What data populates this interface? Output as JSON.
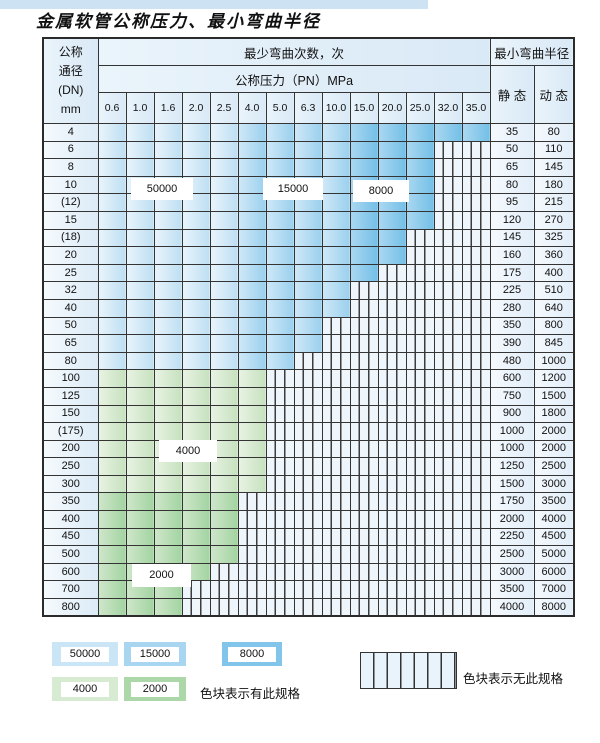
{
  "title": "金属软管公称压力、最小弯曲半径",
  "table": {
    "corner": {
      "line1": "公称",
      "line2": "通径",
      "line3": "(DN)",
      "line4": "mm"
    },
    "top_header": "最少弯曲次数，次",
    "pressure_header": "公称压力（PN）MPa",
    "radius_header": "最小弯曲半径",
    "static_label": "静 态",
    "dynamic_label": "动 态",
    "pressure_columns": [
      "0.6",
      "1.0",
      "1.6",
      "2.0",
      "2.5",
      "4.0",
      "5.0",
      "6.3",
      "10.0",
      "15.0",
      "20.0",
      "25.0",
      "32.0",
      "35.0"
    ],
    "blue_zones": [
      {
        "max_col": 4,
        "cycles": "50000"
      },
      {
        "max_col": 8,
        "cycles": "15000"
      },
      {
        "max_col": 13,
        "cycles": "8000"
      }
    ],
    "rows": [
      {
        "dn": "4",
        "colored_until": 13,
        "palette": "blue",
        "static_radius": "35",
        "dynamic_radius": "80"
      },
      {
        "dn": "6",
        "colored_until": 11,
        "palette": "blue",
        "static_radius": "50",
        "dynamic_radius": "110"
      },
      {
        "dn": "8",
        "colored_until": 11,
        "palette": "blue",
        "static_radius": "65",
        "dynamic_radius": "145"
      },
      {
        "dn": "10",
        "colored_until": 11,
        "palette": "blue",
        "static_radius": "80",
        "dynamic_radius": "180"
      },
      {
        "dn": "(12)",
        "colored_until": 11,
        "palette": "blue",
        "static_radius": "95",
        "dynamic_radius": "215"
      },
      {
        "dn": "15",
        "colored_until": 11,
        "palette": "blue",
        "static_radius": "120",
        "dynamic_radius": "270"
      },
      {
        "dn": "(18)",
        "colored_until": 10,
        "palette": "blue",
        "static_radius": "145",
        "dynamic_radius": "325"
      },
      {
        "dn": "20",
        "colored_until": 10,
        "palette": "blue",
        "static_radius": "160",
        "dynamic_radius": "360"
      },
      {
        "dn": "25",
        "colored_until": 9,
        "palette": "blue",
        "static_radius": "175",
        "dynamic_radius": "400"
      },
      {
        "dn": "32",
        "colored_until": 8,
        "palette": "blue",
        "static_radius": "225",
        "dynamic_radius": "510"
      },
      {
        "dn": "40",
        "colored_until": 8,
        "palette": "blue",
        "static_radius": "280",
        "dynamic_radius": "640"
      },
      {
        "dn": "50",
        "colored_until": 7,
        "palette": "blue",
        "static_radius": "350",
        "dynamic_radius": "800"
      },
      {
        "dn": "65",
        "colored_until": 7,
        "palette": "blue",
        "static_radius": "390",
        "dynamic_radius": "845"
      },
      {
        "dn": "80",
        "colored_until": 6,
        "palette": "blue",
        "static_radius": "480",
        "dynamic_radius": "1000"
      },
      {
        "dn": "100",
        "colored_until": 5,
        "palette": "g4000",
        "static_radius": "600",
        "dynamic_radius": "1200"
      },
      {
        "dn": "125",
        "colored_until": 5,
        "palette": "g4000",
        "static_radius": "750",
        "dynamic_radius": "1500"
      },
      {
        "dn": "150",
        "colored_until": 5,
        "palette": "g4000",
        "static_radius": "900",
        "dynamic_radius": "1800"
      },
      {
        "dn": "(175)",
        "colored_until": 5,
        "palette": "g4000",
        "static_radius": "1000",
        "dynamic_radius": "2000"
      },
      {
        "dn": "200",
        "colored_until": 5,
        "palette": "g4000",
        "static_radius": "1000",
        "dynamic_radius": "2000"
      },
      {
        "dn": "250",
        "colored_until": 5,
        "palette": "g4000",
        "static_radius": "1250",
        "dynamic_radius": "2500"
      },
      {
        "dn": "300",
        "colored_until": 5,
        "palette": "g4000",
        "static_radius": "1500",
        "dynamic_radius": "3000"
      },
      {
        "dn": "350",
        "colored_until": 4,
        "palette": "g2000",
        "static_radius": "1750",
        "dynamic_radius": "3500"
      },
      {
        "dn": "400",
        "colored_until": 4,
        "palette": "g2000",
        "static_radius": "2000",
        "dynamic_radius": "4000"
      },
      {
        "dn": "450",
        "colored_until": 4,
        "palette": "g2000",
        "static_radius": "2250",
        "dynamic_radius": "4500"
      },
      {
        "dn": "500",
        "colored_until": 4,
        "palette": "g2000",
        "static_radius": "2500",
        "dynamic_radius": "5000"
      },
      {
        "dn": "600",
        "colored_until": 3,
        "palette": "g2000",
        "static_radius": "3000",
        "dynamic_radius": "6000"
      },
      {
        "dn": "700",
        "colored_until": 2,
        "palette": "g2000",
        "static_radius": "3500",
        "dynamic_radius": "7000"
      },
      {
        "dn": "800",
        "colored_until": 2,
        "palette": "g2000",
        "static_radius": "4000",
        "dynamic_radius": "8000"
      }
    ]
  },
  "overlays": {
    "cycles_50000": "50000",
    "cycles_15000": "15000",
    "cycles_8000": "8000",
    "cycles_4000": "4000",
    "cycles_2000": "2000"
  },
  "legend": {
    "has_spec_items": [
      {
        "label": "50000",
        "color": "#c9e5f6"
      },
      {
        "label": "15000",
        "color": "#a8d5f0"
      },
      {
        "label": "8000",
        "color": "#82c5ea"
      },
      {
        "label": "4000",
        "color": "#d7ebd2"
      },
      {
        "label": "2000",
        "color": "#abd7a9"
      }
    ],
    "has_spec_text": "色块表示有此规格",
    "no_spec_text": "色块表示无此规格"
  },
  "colors": {
    "grid": "#343434",
    "blue_50000": "#bedff3",
    "blue_15000": "#9bd0ee",
    "blue_8000": "#74bfe7",
    "green_4000": "#c6e1bf",
    "green_2000": "#a3d4a1",
    "hatch_bg": "#eef5fb",
    "header_bg": "#dce9f6"
  }
}
